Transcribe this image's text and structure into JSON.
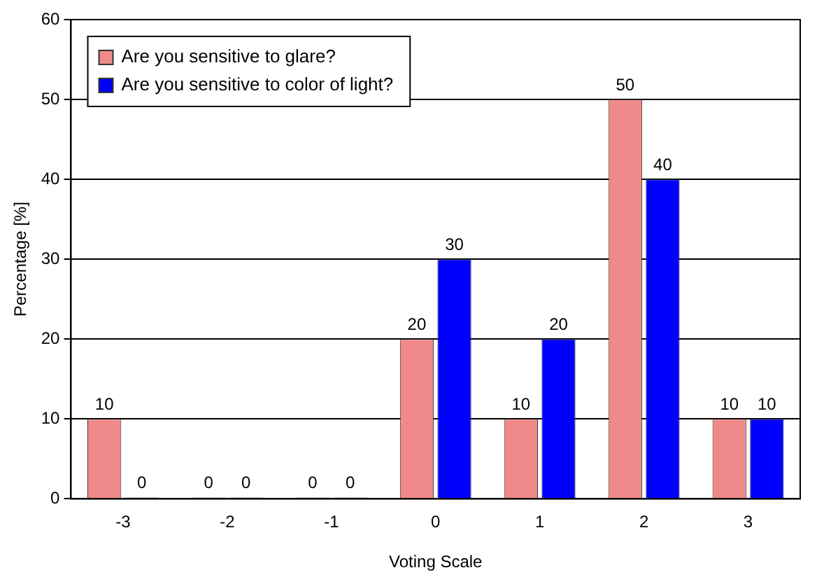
{
  "chart_data": {
    "type": "bar",
    "xlabel": "Voting Scale",
    "ylabel": "Percentage [%]",
    "categories": [
      "-3",
      "-2",
      "-1",
      "0",
      "1",
      "2",
      "3"
    ],
    "series": [
      {
        "name": "Are you sensitive to glare?",
        "color": "#f08a8a",
        "values": [
          10,
          0,
          0,
          20,
          10,
          50,
          10
        ]
      },
      {
        "name": "Are you sensitive to color of light?",
        "color": "#0000ff",
        "values": [
          0,
          0,
          0,
          30,
          20,
          40,
          10
        ]
      }
    ],
    "ylim": [
      0,
      60
    ],
    "yticks": [
      0,
      10,
      20,
      30,
      40,
      50,
      60
    ],
    "grid": "y",
    "legend": "top left",
    "data_labels": true
  }
}
